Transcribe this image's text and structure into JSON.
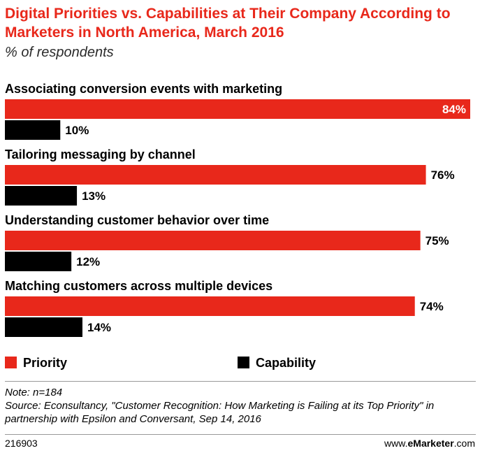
{
  "header": {
    "title": "Digital Priorities vs. Capabilities at Their Company According to Marketers in North America, March 2016",
    "subtitle": "% of respondents"
  },
  "chart_data": {
    "type": "bar",
    "orientation": "horizontal",
    "categories": [
      "Associating conversion events with marketing",
      "Tailoring messaging by channel",
      "Understanding customer behavior over time",
      "Matching customers across multiple devices"
    ],
    "series": [
      {
        "name": "Priority",
        "color": "#e8281b",
        "values": [
          84,
          76,
          75,
          74
        ]
      },
      {
        "name": "Capability",
        "color": "#000000",
        "values": [
          10,
          13,
          12,
          14
        ]
      }
    ],
    "value_suffix": "%",
    "xlim": [
      0,
      84
    ],
    "grid": false,
    "legend": "bottom-left",
    "title": "Digital Priorities vs. Capabilities at Their Company According to Marketers in North America, March 2016",
    "subtitle": "% of respondents"
  },
  "footer": {
    "note": "Note: n=184",
    "source": "Source: Econsultancy, \"Customer Recognition: How Marketing is Failing at its Top Priority\" in partnership with Epsilon and Conversant, Sep 14, 2016",
    "chart_id": "216903",
    "brand_prefix": "www.",
    "brand_name": "eMarketer",
    "brand_suffix": ".com"
  }
}
